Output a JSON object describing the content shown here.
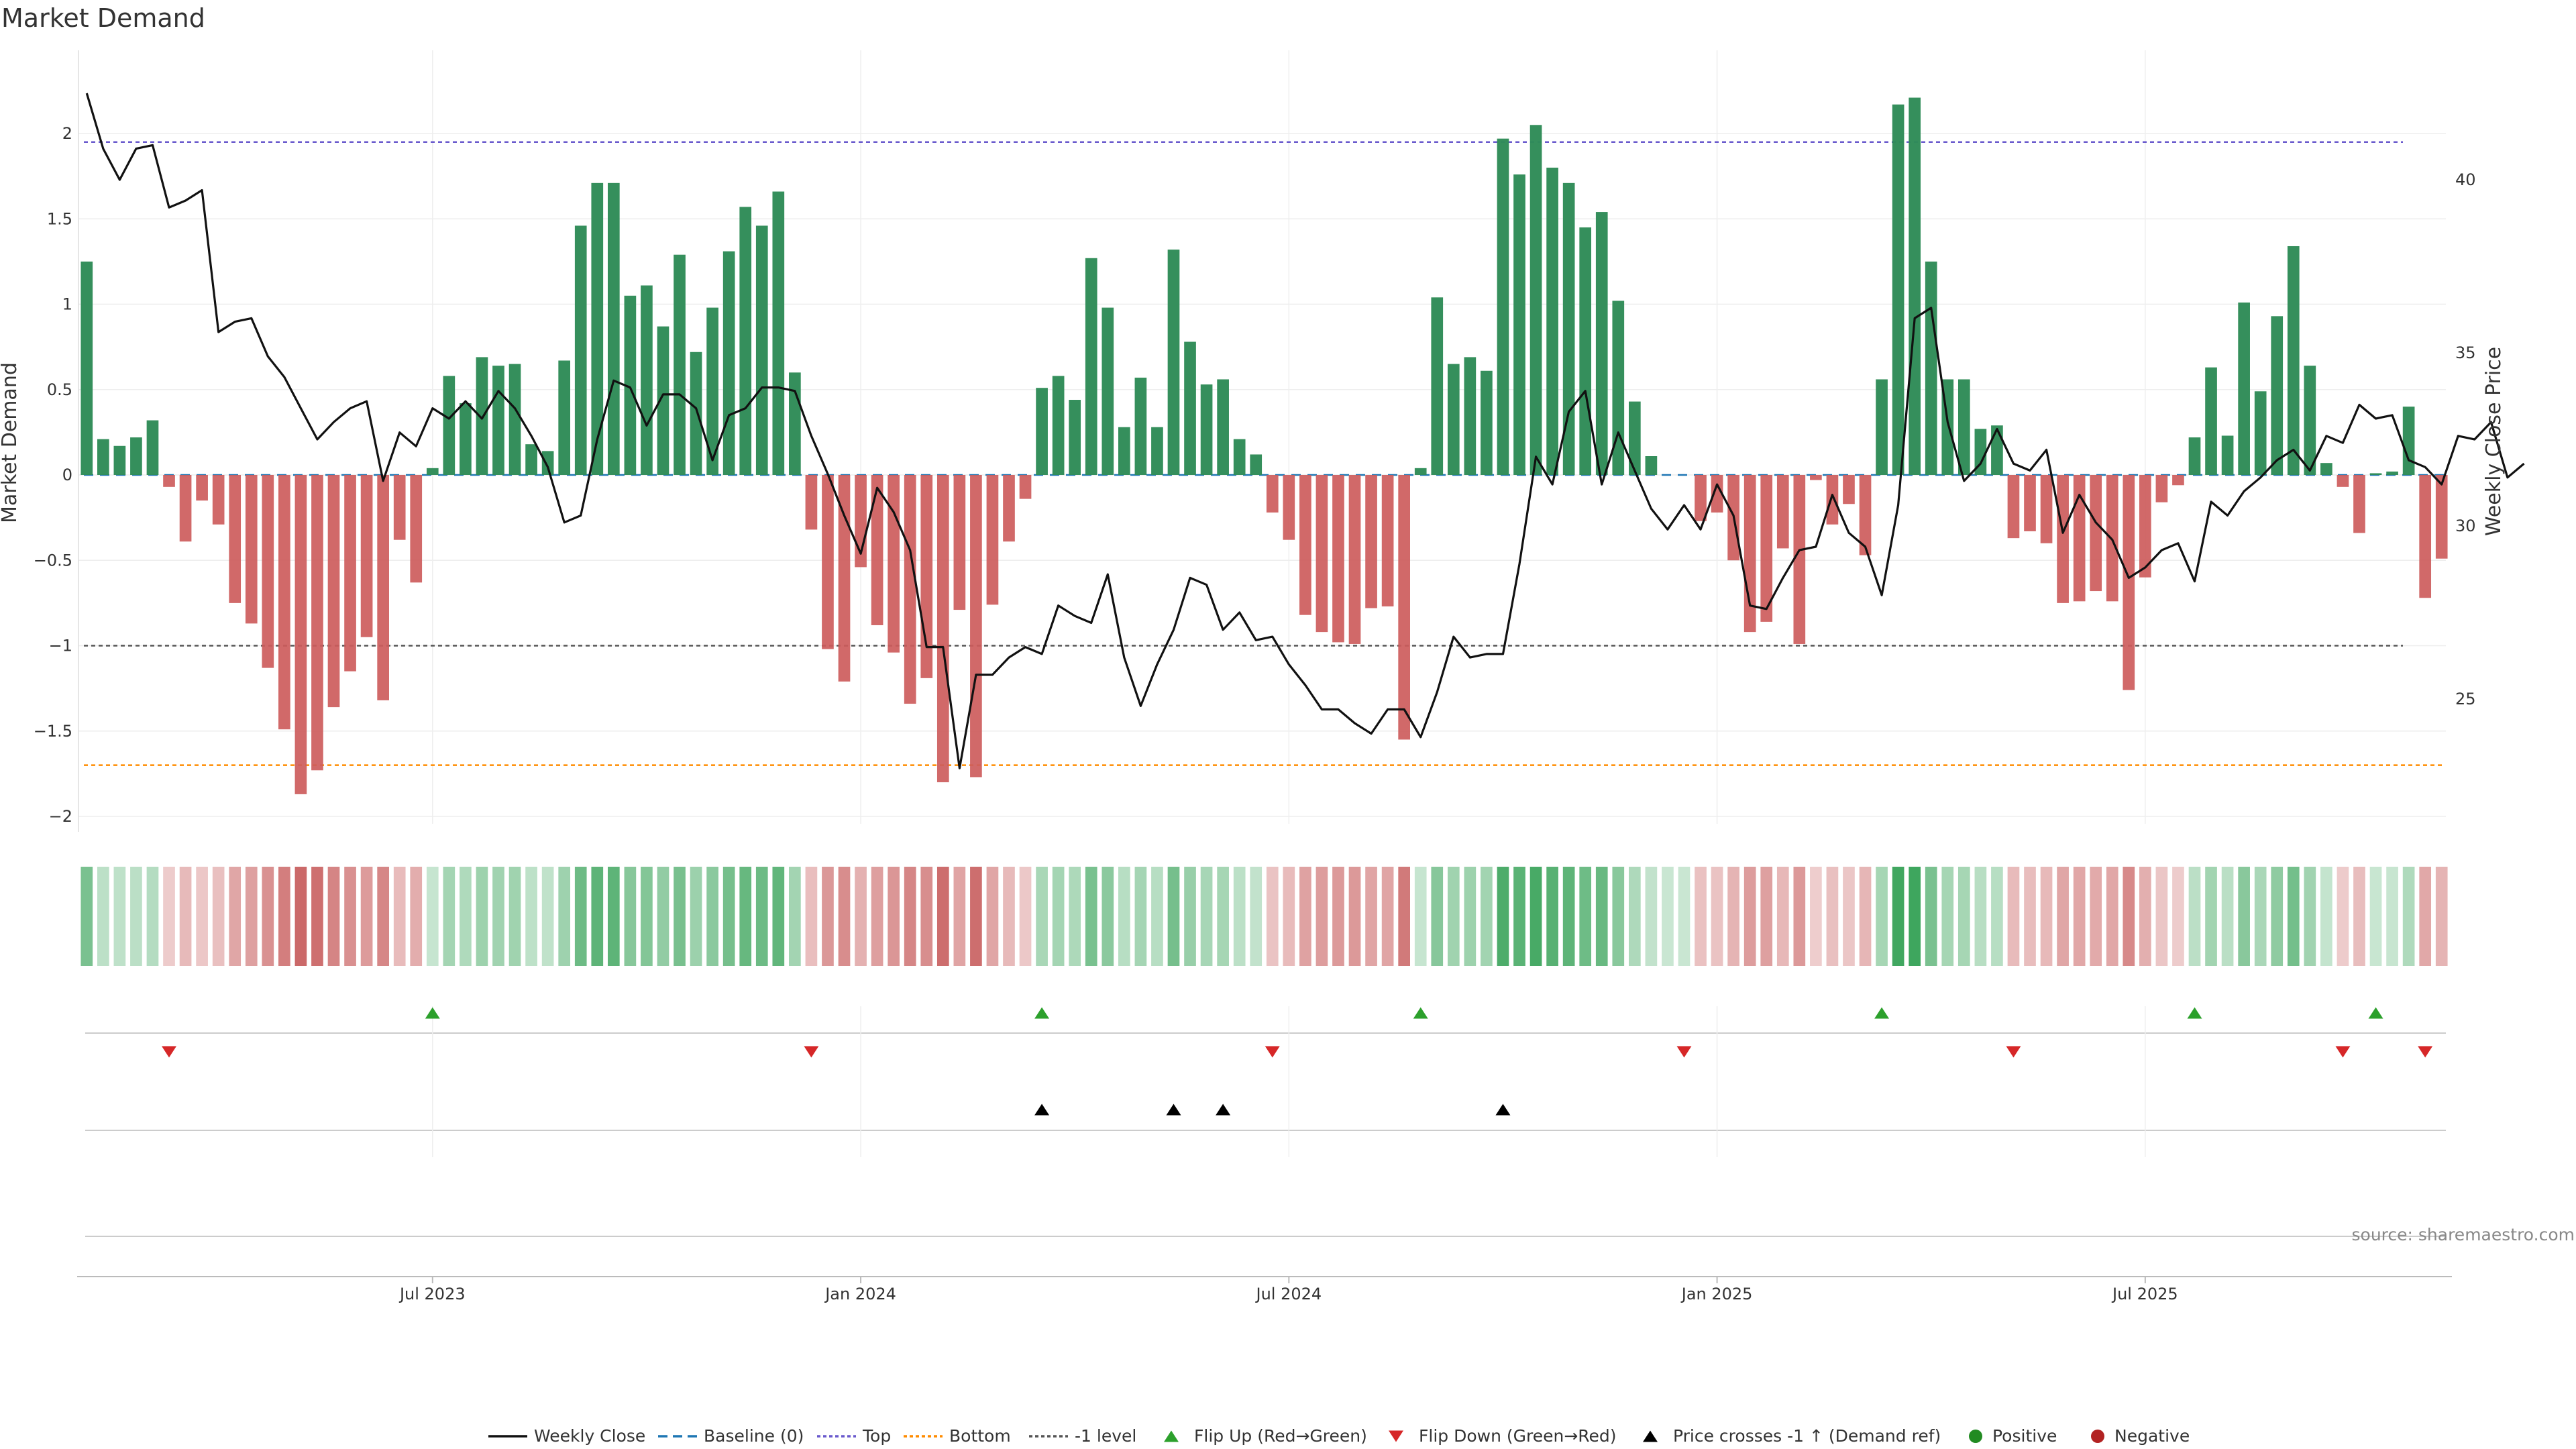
{
  "chart_data": {
    "type": "bar",
    "title": "Market Demand",
    "ylabel": "Market Demand",
    "y2label": "Weekly Close Price",
    "ylim": [
      -2.2,
      2.35
    ],
    "y2lim": [
      21.9,
      43.8
    ],
    "yticks": [
      {
        "value": 2,
        "label": "2"
      },
      {
        "value": 1.5,
        "label": "1.5"
      },
      {
        "value": 1,
        "label": "1"
      },
      {
        "value": 0.5,
        "label": "0.5"
      },
      {
        "value": 0,
        "label": "0"
      },
      {
        "value": -0.5,
        "label": "−0.5"
      },
      {
        "value": -1,
        "label": "−1"
      },
      {
        "value": -1.5,
        "label": "−1.5"
      },
      {
        "value": -2,
        "label": "−2"
      }
    ],
    "y2ticks": [
      {
        "value": 40,
        "label": "40"
      },
      {
        "value": 35,
        "label": "35"
      },
      {
        "value": 30,
        "label": "30"
      },
      {
        "value": 25,
        "label": "25"
      }
    ],
    "xticks": [
      {
        "index": 21.5,
        "label": "Jul 2023"
      },
      {
        "index": 47.5,
        "label": "Jan 2024"
      },
      {
        "index": 73.5,
        "label": "Jul 2024"
      },
      {
        "index": 99.5,
        "label": "Jan 2025"
      },
      {
        "index": 125.5,
        "label": "Jul 2025"
      }
    ],
    "reference_lines": {
      "top": 1.95,
      "bottom": -1.7,
      "minus_one": -1,
      "baseline": 0
    },
    "demand": [
      1.25,
      0.21,
      0.17,
      0.22,
      0.32,
      -0.07,
      -0.39,
      -0.15,
      -0.29,
      -0.75,
      -0.87,
      -1.13,
      -1.49,
      -1.87,
      -1.73,
      -1.36,
      -1.15,
      -0.95,
      -1.32,
      -0.38,
      -0.63,
      0.04,
      0.58,
      0.42,
      0.69,
      0.64,
      0.65,
      0.18,
      0.14,
      0.67,
      1.46,
      1.71,
      1.71,
      1.05,
      1.11,
      0.87,
      1.29,
      0.72,
      0.98,
      1.31,
      1.57,
      1.46,
      1.66,
      0.6,
      -0.32,
      -1.02,
      -1.21,
      -0.54,
      -0.88,
      -1.04,
      -1.34,
      -1.19,
      -1.8,
      -0.79,
      -1.77,
      -0.76,
      -0.39,
      -0.14,
      0.51,
      0.58,
      0.44,
      1.27,
      0.98,
      0.28,
      0.57,
      0.28,
      1.32,
      0.78,
      0.53,
      0.56,
      0.21,
      0.12,
      -0.22,
      -0.38,
      -0.82,
      -0.92,
      -0.98,
      -0.99,
      -0.78,
      -0.77,
      -1.55,
      0.04,
      1.04,
      0.65,
      0.69,
      0.61,
      1.97,
      1.76,
      2.05,
      1.8,
      1.71,
      1.45,
      1.54,
      1.02,
      0.43,
      0.11,
      0.0,
      0.0,
      -0.27,
      -0.22,
      -0.5,
      -0.92,
      -0.86,
      -0.43,
      -0.99,
      -0.03,
      -0.29,
      -0.17,
      -0.47,
      0.56,
      2.17,
      2.21,
      1.25,
      0.56,
      0.56,
      0.27,
      0.29,
      -0.37,
      -0.33,
      -0.4,
      -0.75,
      -0.74,
      -0.68,
      -0.74,
      -1.26,
      -0.6,
      -0.16,
      -0.06,
      0.22,
      0.63,
      0.23,
      1.01,
      0.49,
      0.93,
      1.34,
      0.64,
      0.07,
      -0.07,
      -0.34,
      0.01,
      0.02,
      0.4,
      -0.72,
      -0.49
    ],
    "close": [
      42.5,
      40.9,
      40.0,
      40.9,
      41.0,
      39.2,
      39.4,
      39.7,
      35.6,
      35.9,
      36.0,
      34.9,
      34.3,
      33.4,
      32.5,
      33.0,
      33.4,
      33.6,
      31.3,
      32.7,
      32.3,
      33.4,
      33.1,
      33.6,
      33.1,
      33.9,
      33.4,
      32.6,
      31.7,
      30.1,
      30.3,
      32.5,
      34.2,
      34.0,
      32.9,
      33.8,
      33.8,
      33.4,
      31.9,
      33.2,
      33.4,
      34.0,
      34.0,
      33.9,
      32.6,
      31.5,
      30.3,
      29.2,
      31.1,
      30.4,
      29.3,
      26.5,
      26.5,
      23.0,
      25.7,
      25.7,
      26.2,
      26.5,
      26.3,
      27.7,
      27.4,
      27.2,
      28.6,
      26.2,
      24.8,
      26.0,
      27.0,
      28.5,
      28.3,
      27.0,
      27.5,
      26.7,
      26.8,
      26.0,
      25.4,
      24.7,
      24.7,
      24.3,
      24.0,
      24.7,
      24.7,
      23.9,
      25.2,
      26.8,
      26.2,
      26.3,
      26.3,
      28.9,
      32.0,
      31.2,
      33.3,
      33.9,
      31.2,
      32.7,
      31.6,
      30.5,
      29.9,
      30.6,
      29.9,
      31.2,
      30.3,
      27.7,
      27.6,
      28.5,
      29.3,
      29.4,
      30.9,
      29.8,
      29.4,
      28.0,
      30.6,
      36.0,
      36.3,
      33.0,
      31.3,
      31.8,
      32.8,
      31.8,
      31.6,
      32.2,
      29.8,
      30.9,
      30.1,
      29.6,
      28.5,
      28.8,
      29.3,
      29.5,
      28.4,
      30.7,
      30.3,
      31.0,
      31.4,
      31.9,
      32.2,
      31.6,
      32.6,
      32.4,
      33.5,
      33.1,
      33.2,
      31.9,
      31.7,
      31.2,
      32.6,
      32.5,
      33.0,
      31.4,
      31.8
    ]
  },
  "signals": {
    "flip_up": [
      21,
      58,
      81,
      109,
      128,
      139
    ],
    "flip_down": [
      5,
      44,
      72,
      97,
      117,
      137,
      142
    ],
    "price_crosses": [
      58,
      66,
      69,
      86
    ]
  },
  "legend": [
    {
      "key": "weekly_close",
      "label": "Weekly Close"
    },
    {
      "key": "baseline",
      "label": "Baseline (0)"
    },
    {
      "key": "top",
      "label": "Top"
    },
    {
      "key": "bottom",
      "label": "Bottom"
    },
    {
      "key": "minus_one",
      "label": "-1 level"
    },
    {
      "key": "flip_up",
      "label": "Flip Up (Red→Green)"
    },
    {
      "key": "flip_down",
      "label": "Flip Down (Green→Red)"
    },
    {
      "key": "price_cross",
      "label": "Price crosses -1 ↑ (Demand ref)"
    },
    {
      "key": "positive",
      "label": "Positive"
    },
    {
      "key": "negative",
      "label": "Negative"
    }
  ],
  "colors": {
    "positive": "#2e8b57",
    "negative": "#cd5c5c",
    "close_line": "#111111",
    "top_line": "#6a5acd",
    "bottom_line": "#ff8c00",
    "minus_one_line": "#555555",
    "baseline": "#1f77b4",
    "flip_up": "#2ca02c",
    "flip_down": "#d62728",
    "price_cross": "#000000",
    "pos_dot": "#228b22",
    "neg_dot": "#b22222"
  },
  "source": "source: sharemaestro.com"
}
